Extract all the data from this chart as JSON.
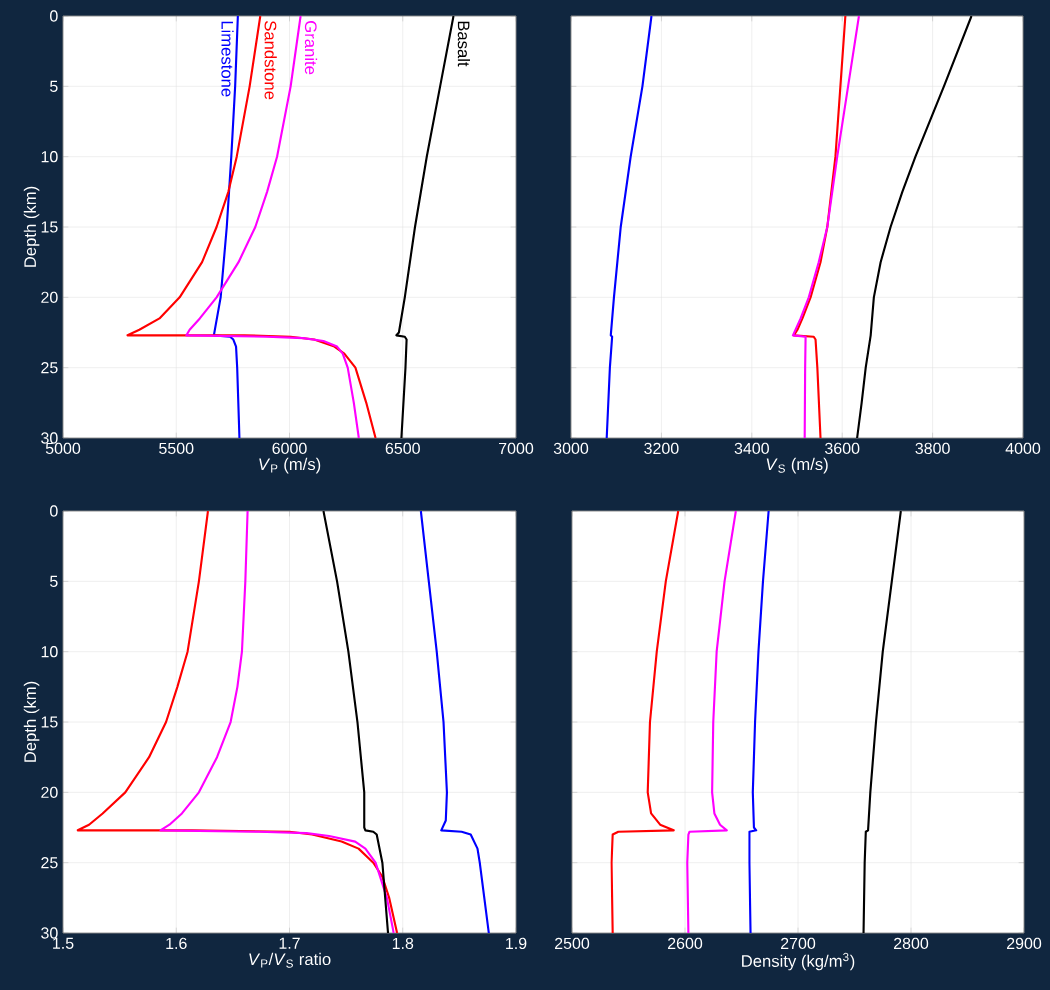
{
  "chart_data": [
    {
      "type": "line",
      "xlabel": "*V*$_{P}$ (m/s)",
      "ylabel": "Depth (km)",
      "xlim": [
        5000,
        7000
      ],
      "xticks": [
        5000,
        5500,
        6000,
        6500,
        7000
      ],
      "ylim": [
        30,
        0
      ],
      "yticks": [
        0,
        5,
        10,
        15,
        20,
        25,
        30
      ],
      "grid": true,
      "line_style": "solid",
      "series": [
        {
          "name": "Limestone",
          "color": "#0000ff",
          "x": [
            5772,
            5760,
            5743,
            5723,
            5696,
            5666,
            5738,
            5752,
            5764,
            5769,
            5779
          ],
          "values": [
            0,
            5,
            10,
            15,
            20,
            22.7,
            22.8,
            23,
            23.5,
            25,
            30
          ]
        },
        {
          "name": "Sandstone",
          "color": "#ff0000",
          "x": [
            5871,
            5824,
            5767,
            5730,
            5678,
            5614,
            5515,
            5426,
            5337,
            5285,
            5800,
            6005,
            6109,
            6198,
            6242,
            6291,
            6339,
            6380
          ],
          "values": [
            0,
            5,
            10,
            12.5,
            15,
            17.5,
            20,
            21.5,
            22.3,
            22.7,
            22.7,
            22.8,
            23,
            23.5,
            24,
            25,
            27.5,
            30
          ]
        },
        {
          "name": "Granite",
          "color": "#ff00ff",
          "x": [
            6049,
            6005,
            5945,
            5901,
            5849,
            5775,
            5678,
            5604,
            5559,
            5545,
            5900,
            6060,
            6150,
            6210,
            6235,
            6257,
            6284,
            6306
          ],
          "values": [
            0,
            5,
            10,
            12.5,
            15,
            17.5,
            20,
            21.5,
            22.3,
            22.7,
            22.8,
            22.9,
            23.1,
            23.5,
            24,
            25,
            27.5,
            30
          ]
        },
        {
          "name": "Basalt",
          "color": "#000000",
          "x": [
            6724,
            6665,
            6606,
            6554,
            6509,
            6483,
            6472,
            6509,
            6517,
            6512,
            6494
          ],
          "values": [
            0,
            5,
            10,
            15,
            20,
            22.5,
            22.7,
            22.8,
            23,
            25,
            30
          ]
        }
      ]
    },
    {
      "type": "line",
      "xlabel": "*V*$_{S}$ (m/s)",
      "xlim": [
        3000,
        4000
      ],
      "xticks": [
        3000,
        3200,
        3400,
        3600,
        3800,
        4000
      ],
      "ylim": [
        30,
        0
      ],
      "yticks": [
        0,
        5,
        10,
        15,
        20,
        25,
        30
      ],
      "tick_labels": "x",
      "grid": true,
      "line_style": "solid",
      "series": [
        {
          "color": "#0000ff",
          "x": [
            3178,
            3158,
            3132,
            3110,
            3095,
            3088,
            3091,
            3086,
            3079
          ],
          "values": [
            0,
            5,
            10,
            15,
            20,
            22.7,
            22.8,
            25,
            30
          ]
        },
        {
          "color": "#ff0000",
          "x": [
            3607,
            3596,
            3585,
            3567,
            3552,
            3530,
            3512,
            3501,
            3493,
            3537,
            3541,
            3545,
            3552
          ],
          "values": [
            0,
            5,
            10,
            15,
            17.5,
            20,
            21.5,
            22.3,
            22.7,
            22.8,
            23,
            25,
            30
          ]
        },
        {
          "color": "#ff00ff",
          "x": [
            3637,
            3613,
            3589,
            3567,
            3548,
            3526,
            3508,
            3491,
            3519,
            3518,
            3517
          ],
          "values": [
            0,
            5,
            10,
            15,
            17.5,
            20,
            21.5,
            22.7,
            22.8,
            25,
            30
          ]
        },
        {
          "color": "#000000",
          "x": [
            3886,
            3825,
            3762,
            3733,
            3707,
            3685,
            3670,
            3663,
            3652,
            3643,
            3633
          ],
          "values": [
            0,
            5,
            10,
            12.5,
            15,
            17.5,
            20,
            22.7,
            25,
            27.5,
            30
          ]
        }
      ]
    },
    {
      "type": "line",
      "xlabel": "*V*$_{P}$/*V*$_{S}$ ratio",
      "ylabel": "Depth (km)",
      "xlim": [
        1.5,
        1.9
      ],
      "xticks": [
        1.5,
        1.6,
        1.7,
        1.8,
        1.9
      ],
      "ylim": [
        30,
        0
      ],
      "yticks": [
        0,
        5,
        10,
        15,
        20,
        25,
        30
      ],
      "grid": true,
      "line_style": "solid",
      "series": [
        {
          "color": "#0000ff",
          "x": [
            1.816,
            1.823,
            1.83,
            1.836,
            1.839,
            1.838,
            1.834,
            1.852,
            1.86,
            1.866,
            1.868,
            1.872,
            1.876
          ],
          "values": [
            0,
            5,
            10,
            15,
            20,
            22,
            22.7,
            22.8,
            23,
            24,
            25,
            27.5,
            30
          ]
        },
        {
          "color": "#ff0000",
          "x": [
            1.628,
            1.62,
            1.61,
            1.601,
            1.591,
            1.576,
            1.555,
            1.535,
            1.523,
            1.513,
            1.614,
            1.7,
            1.72,
            1.746,
            1.761,
            1.774,
            1.782,
            1.788,
            1.795
          ],
          "values": [
            0,
            5,
            10,
            12.5,
            15,
            17.5,
            20,
            21.5,
            22.3,
            22.7,
            22.7,
            22.8,
            23,
            23.5,
            24,
            25,
            26,
            27.5,
            30
          ]
        },
        {
          "color": "#ff00ff",
          "x": [
            1.663,
            1.661,
            1.658,
            1.654,
            1.648,
            1.636,
            1.62,
            1.605,
            1.594,
            1.586,
            1.673,
            1.715,
            1.735,
            1.758,
            1.767,
            1.776,
            1.786,
            1.792
          ],
          "values": [
            0,
            5,
            10,
            12.5,
            15,
            17.5,
            20,
            21.5,
            22.3,
            22.7,
            22.8,
            22.9,
            23.1,
            23.5,
            24,
            25,
            27.5,
            30
          ]
        },
        {
          "color": "#000000",
          "x": [
            1.73,
            1.742,
            1.752,
            1.76,
            1.766,
            1.766,
            1.767,
            1.774,
            1.777,
            1.782,
            1.787
          ],
          "values": [
            0,
            5,
            10,
            15,
            20,
            22.5,
            22.7,
            22.8,
            23,
            25,
            30
          ]
        }
      ]
    },
    {
      "type": "line",
      "xlabel": "Density (kg/m$^{3}$)",
      "xlim": [
        2500,
        2900
      ],
      "xticks": [
        2500,
        2600,
        2700,
        2800,
        2900
      ],
      "ylim": [
        30,
        0
      ],
      "yticks": [
        0,
        5,
        10,
        15,
        20,
        25,
        30
      ],
      "tick_labels": "x",
      "grid": true,
      "line_style": "solid",
      "series": [
        {
          "color": "#0000ff",
          "x": [
            2674,
            2669,
            2665,
            2662,
            2660,
            2661,
            2663,
            2657,
            2657,
            2658
          ],
          "values": [
            0,
            5,
            10,
            15,
            20,
            22.5,
            22.7,
            22.8,
            25,
            30
          ]
        },
        {
          "color": "#ff0000",
          "x": [
            2594,
            2583,
            2575,
            2569,
            2567,
            2570,
            2578,
            2590,
            2541,
            2536,
            2535,
            2536
          ],
          "values": [
            0,
            5,
            10,
            15,
            20,
            21.5,
            22.3,
            22.7,
            22.8,
            23,
            25,
            30
          ]
        },
        {
          "color": "#ff00ff",
          "x": [
            2645,
            2635,
            2628,
            2625,
            2624,
            2626,
            2631,
            2637,
            2604,
            2603,
            2602,
            2603
          ],
          "values": [
            0,
            5,
            10,
            15,
            20,
            21.5,
            22.3,
            22.7,
            22.8,
            23,
            25,
            30
          ]
        },
        {
          "color": "#000000",
          "x": [
            2791,
            2783,
            2775,
            2769,
            2764,
            2762,
            2760,
            2759,
            2758
          ],
          "values": [
            0,
            5,
            10,
            15,
            20,
            22.7,
            22.8,
            25,
            30
          ]
        }
      ]
    }
  ]
}
